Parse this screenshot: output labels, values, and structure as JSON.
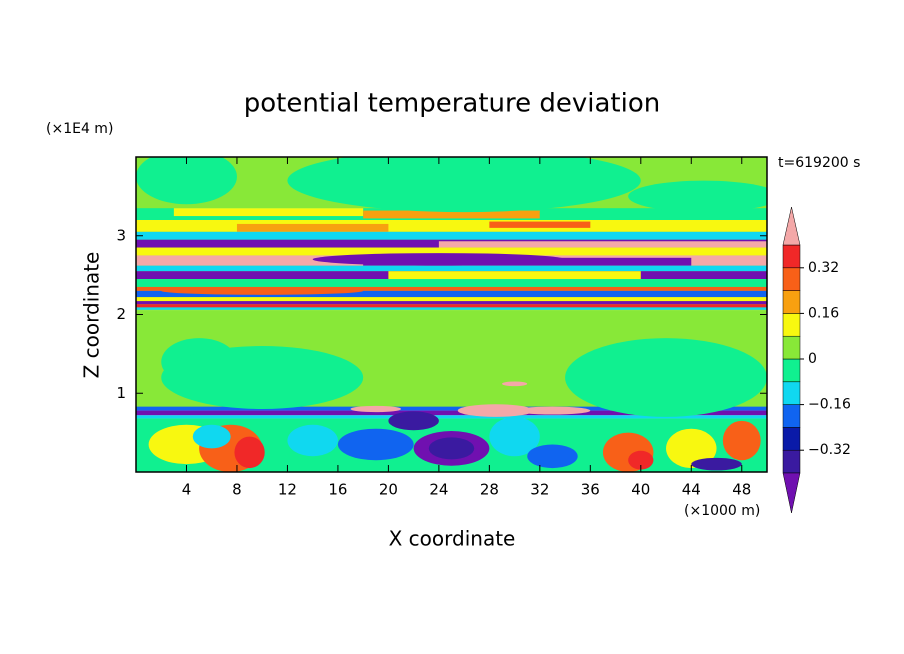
{
  "chart_data": {
    "type": "contour",
    "title": "potential temperature deviation",
    "xlabel": "X coordinate",
    "ylabel": "Z coordinate",
    "x_unit_label": "(×1000 m)",
    "y_unit_label": "(×1E4 m)",
    "annotation": "t=619200 s",
    "xlim": [
      0,
      50
    ],
    "xticks": [
      4,
      8,
      12,
      16,
      20,
      24,
      28,
      32,
      36,
      40,
      44,
      48
    ],
    "ylim": [
      0,
      4
    ],
    "yticks": [
      1,
      2,
      3
    ],
    "levels": [
      -0.4,
      -0.32,
      -0.24,
      -0.16,
      -0.08,
      0,
      0.08,
      0.16,
      0.24,
      0.32,
      0.4
    ],
    "colors": [
      "#7010b0",
      "#3a1aa0",
      "#0a1aa8",
      "#1064f0",
      "#10d8f0",
      "#10f090",
      "#88e838",
      "#f8f810",
      "#f8a010",
      "#f86018",
      "#f02828",
      "#f4a8a8"
    ],
    "colorbar_ticks": [
      {
        "value": -0.32,
        "label": "−0.32"
      },
      {
        "value": -0.16,
        "label": "−0.16"
      },
      0,
      0.16,
      0.32
    ]
  }
}
